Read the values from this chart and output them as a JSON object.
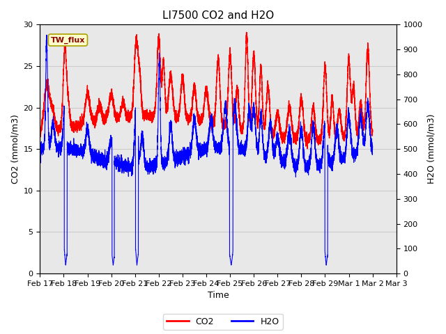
{
  "title": "LI7500 CO2 and H2O",
  "xlabel": "Time",
  "ylabel_left": "CO2 (mmol/m3)",
  "ylabel_right": "H2O (mmol/m3)",
  "xlim_days": [
    0,
    14
  ],
  "ylim_left": [
    0,
    30
  ],
  "ylim_right": [
    0,
    1000
  ],
  "yticks_left": [
    0,
    5,
    10,
    15,
    20,
    25,
    30
  ],
  "yticks_right": [
    0,
    100,
    200,
    300,
    400,
    500,
    600,
    700,
    800,
    900,
    1000
  ],
  "xtick_labels": [
    "Feb 17",
    "Feb 18",
    "Feb 19",
    "Feb 20",
    "Feb 21",
    "Feb 22",
    "Feb 23",
    "Feb 24",
    "Feb 25",
    "Feb 26",
    "Feb 27",
    "Feb 28",
    "Feb 29",
    "Mar 1",
    "Mar 2",
    "Mar 3"
  ],
  "legend_labels": [
    "CO2",
    "H2O"
  ],
  "legend_colors": [
    "red",
    "blue"
  ],
  "co2_color": "red",
  "h2o_color": "blue",
  "annotation_text": "TW_flux",
  "annotation_bg": "#ffffcc",
  "annotation_border": "#aaa000",
  "grid_color": "#cccccc",
  "plot_bg": "#e8e8e8",
  "title_fontsize": 11,
  "axis_label_fontsize": 9,
  "tick_fontsize": 8,
  "linewidth_co2": 1.0,
  "linewidth_h2o": 0.8
}
